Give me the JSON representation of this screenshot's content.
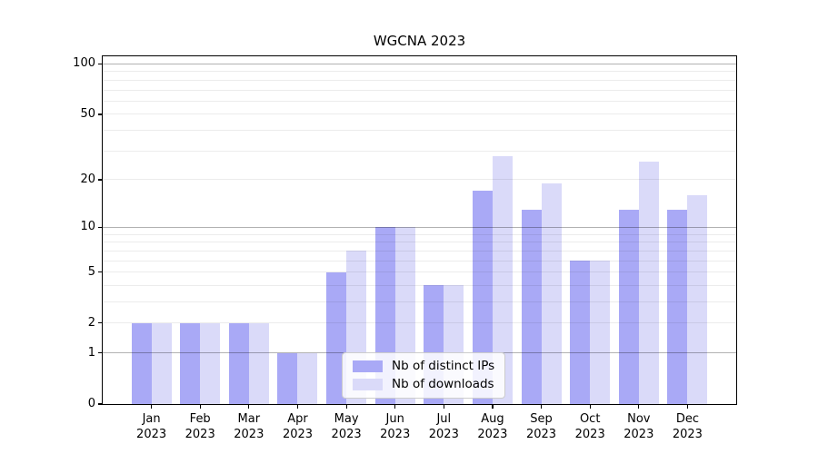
{
  "title": "WGCNA 2023",
  "colors": {
    "background": "#ffffff",
    "axis": "#000000",
    "bar_distinct_ips": "#a9a9f6",
    "bar_downloads": "#dadaf9",
    "grid_major": "#b3b3b3",
    "grid_minor": "#ececec",
    "legend_border": "#cccccc"
  },
  "chart_data": {
    "type": "bar",
    "title": "WGCNA 2023",
    "categories": [
      "Jan 2023",
      "Feb 2023",
      "Mar 2023",
      "Apr 2023",
      "May 2023",
      "Jun 2023",
      "Jul 2023",
      "Aug 2023",
      "Sep 2023",
      "Oct 2023",
      "Nov 2023",
      "Dec 2023"
    ],
    "series": [
      {
        "name": "Nb of distinct IPs",
        "color": "#a9a9f6",
        "values": [
          2,
          2,
          2,
          1,
          5,
          10,
          4,
          17,
          13,
          6,
          13,
          13
        ]
      },
      {
        "name": "Nb of downloads",
        "color": "#dadaf9",
        "values": [
          2,
          2,
          2,
          1,
          7,
          10,
          4,
          28,
          19,
          6,
          26,
          16
        ]
      }
    ],
    "xlabel": "",
    "ylabel": "",
    "yscale": "log1p",
    "ylim": [
      0,
      111
    ],
    "ytick_values": [
      0,
      1,
      2,
      5,
      10,
      20,
      50,
      100
    ],
    "ytick_labels": [
      "0",
      "1",
      "2",
      "5",
      "10",
      "20",
      "50",
      "100"
    ],
    "grid": {
      "major_values": [
        1,
        10,
        100
      ],
      "minor_values": [
        2,
        3,
        4,
        5,
        6,
        7,
        8,
        9,
        20,
        30,
        40,
        50,
        60,
        70,
        80,
        90
      ]
    },
    "legend_position": "lower center",
    "grid_on": true
  }
}
